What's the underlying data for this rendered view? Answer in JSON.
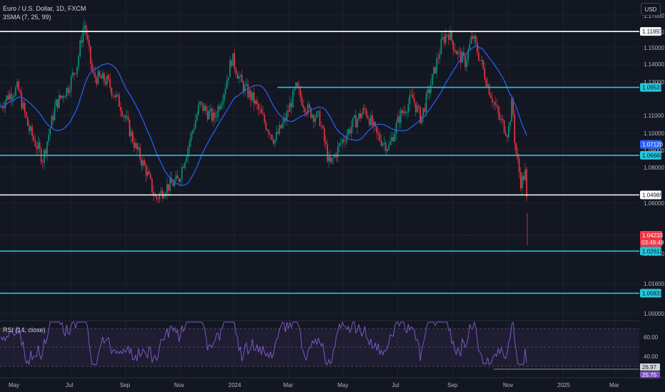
{
  "header": {
    "symbol_title": "Euro / U.S. Dollar, 1D, FXCM",
    "indicator": "3SMA (7, 25, 99)",
    "currency_button": "USD"
  },
  "rsi": {
    "label": "RSI (14, close)",
    "levels": [
      "60.00",
      "40.00"
    ],
    "value_tags": [
      "26.97",
      "25.75"
    ]
  },
  "price_axis": {
    "ticks": [
      "1.17000",
      "1.16000",
      "1.15000",
      "1.14000",
      "1.13000",
      "1.11000",
      "1.10000",
      "1.09000",
      "1.08000",
      "1.06000",
      "1.03200",
      "1.01600",
      "1.00000"
    ]
  },
  "horizontal_levels": [
    {
      "price": 1.11893,
      "label": "1.11893",
      "color": "#ffffff"
    },
    {
      "price": 1.09531,
      "label": "1.09531",
      "color": "#26c6da"
    },
    {
      "price": 1.0666,
      "label": "1.06660",
      "color": "#26c6da"
    },
    {
      "price": 1.04985,
      "label": "1.04985",
      "color": "#ffffff"
    },
    {
      "price": 1.02612,
      "label": "1.02612",
      "color": "#26c6da"
    },
    {
      "price": 1.00831,
      "label": "1.00831",
      "color": "#26c6da"
    }
  ],
  "price_tags": {
    "sma_value": "1.07120",
    "last_price": "1.04233",
    "countdown": "03:49:49"
  },
  "time_axis": [
    "May",
    "Jul",
    "Sep",
    "Nov",
    "2024",
    "Mar",
    "May",
    "Jul",
    "Sep",
    "Nov",
    "2025",
    "Mar"
  ],
  "colors": {
    "up": "#089981",
    "down": "#f23645",
    "sma": "#2962ff",
    "rsi": "#7e57c2",
    "background": "#131722"
  }
}
